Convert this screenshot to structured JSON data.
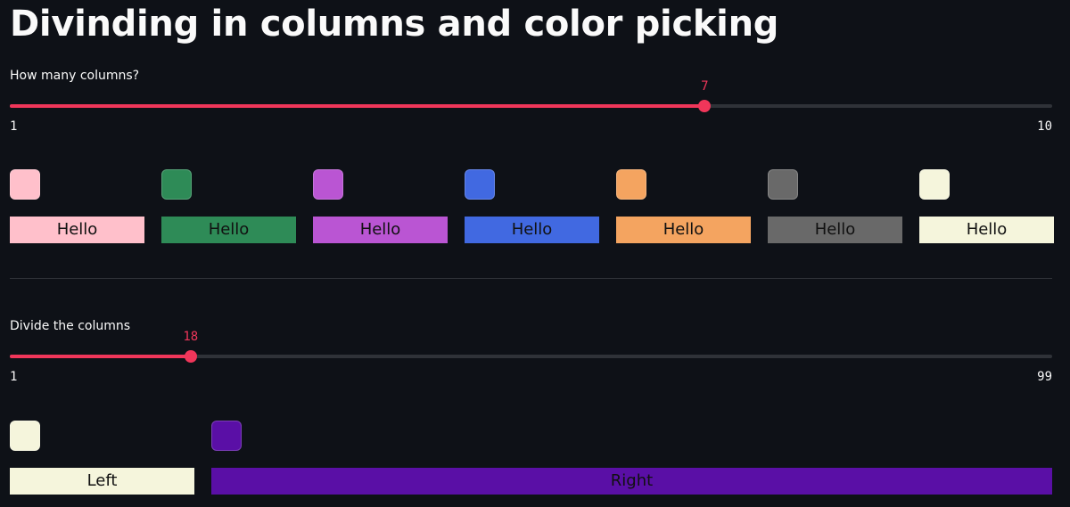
{
  "title": "Divinding in columns and color picking",
  "slider_columns": {
    "label": "How many columns?",
    "value": 7,
    "min": 1,
    "max": 10
  },
  "columns": [
    {
      "color": "#ffc0cb",
      "text": "Hello"
    },
    {
      "color": "#2e8b57",
      "text": "Hello"
    },
    {
      "color": "#ba55d3",
      "text": "Hello"
    },
    {
      "color": "#4169e1",
      "text": "Hello"
    },
    {
      "color": "#f4a460",
      "text": "Hello"
    },
    {
      "color": "#696969",
      "text": "Hello"
    },
    {
      "color": "#f5f5dc",
      "text": "Hello"
    }
  ],
  "slider_divide": {
    "label": "Divide the columns",
    "value": 18,
    "min": 1,
    "max": 99
  },
  "split": [
    {
      "color": "#f5f5dc",
      "text": "Left"
    },
    {
      "color": "#5a0fa6",
      "text": "Right"
    }
  ]
}
